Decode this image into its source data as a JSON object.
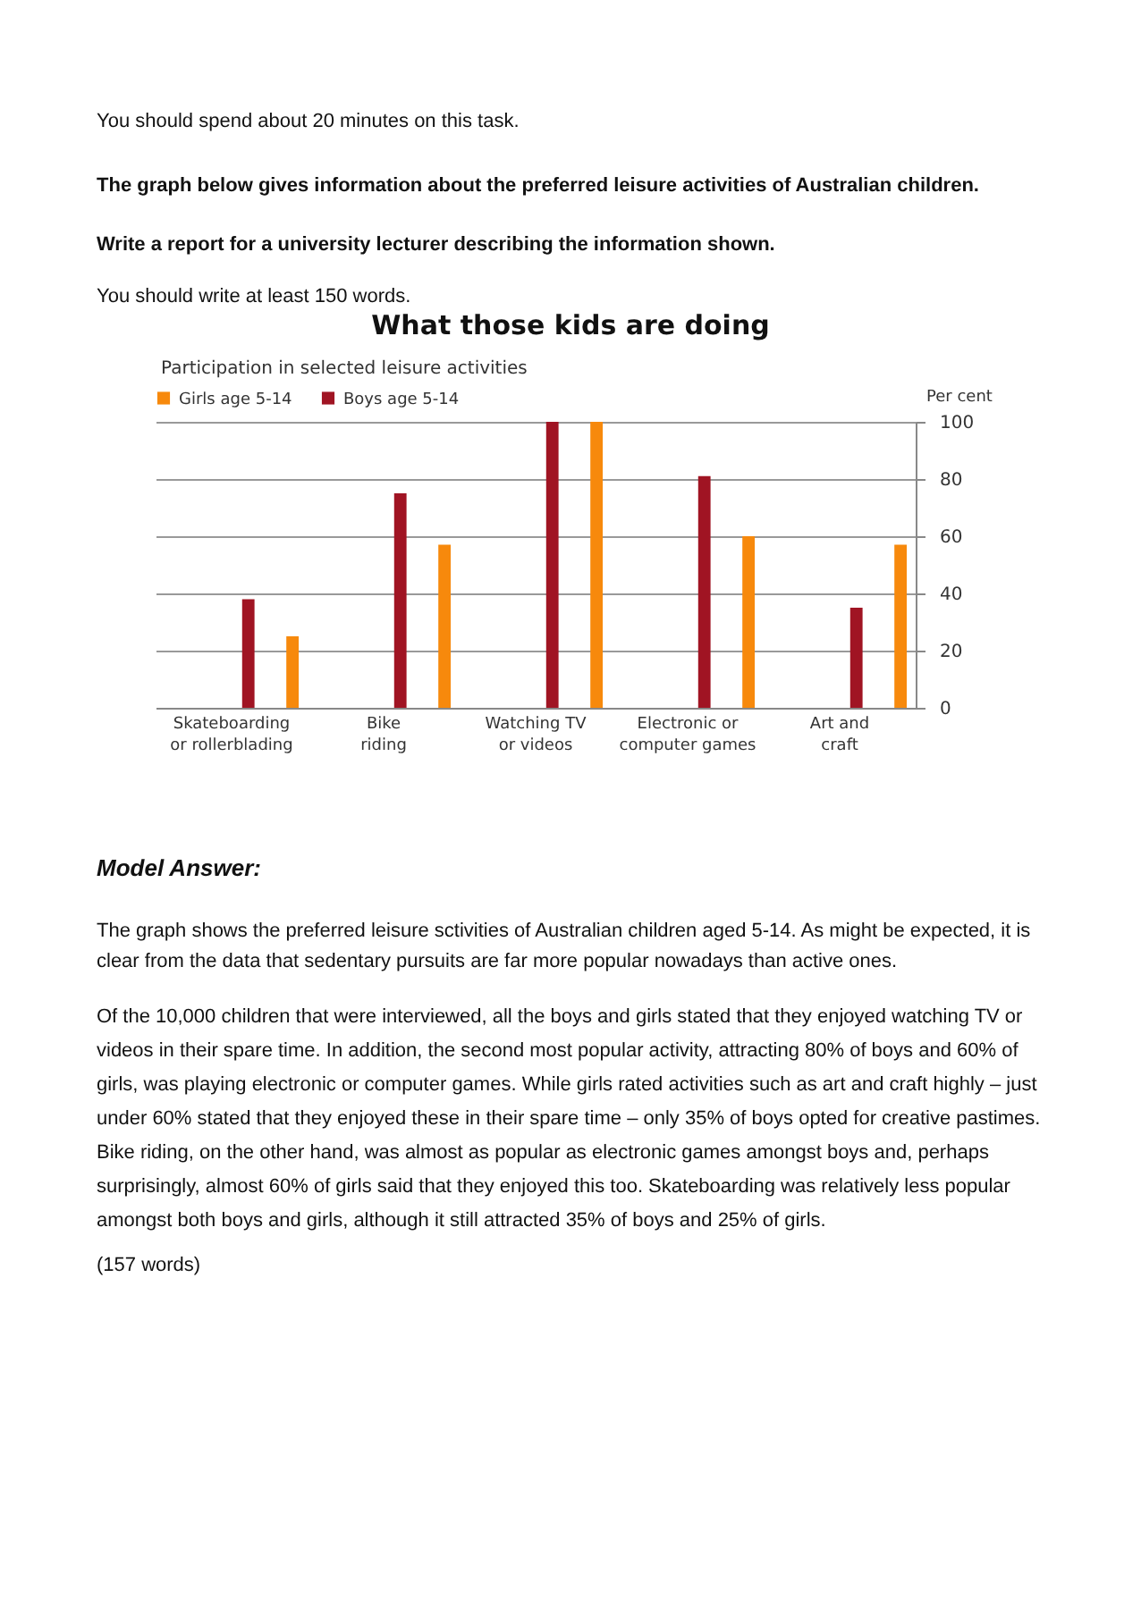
{
  "chart_data": {
    "type": "bar",
    "title": "What those kids are doing",
    "subtitle": "Participation in selected leisure activities",
    "ylabel": "Per cent",
    "annotations": [
      "You should spend about 20 minutes on this task.",
      "The graph below gives information about the preferred leisure activities of Australian children.",
      "Write a report for a university lecturer describing the information shown.",
      "You should write at least 150 words.",
      "Model Answer:",
      "The graph shows the preferred leisure sctivities of Australian children aged 5-14. As might be expected, it is clear from the data that sedentary pursuits are far more popular nowadays than active ones.",
      "Of the 10,000 children that were interviewed, all the boys and girls stated that they enjoyed watching TV or videos in their spare time. In addition, the second most popular activity, attracting 80% of boys and 60% of girls, was playing electronic or computer games. While girls rated activities such as art and craft highly – just under 60% stated that they enjoyed these in their spare time – only 35% of boys opted for creative pastimes. Bike riding, on the other hand, was almost as popular as electronic games amongst boys and, perhaps surprisingly, almost 60% of girls said that they enjoyed this too. Skateboarding was relatively less popular amongst both boys and girls, although it still attracted 35% of boys and 25% of girls.",
      "(157 words)"
    ],
    "categories": [
      "Skateboarding or rollerblading",
      "Bike riding",
      "Watching TV or videos",
      "Electronic or computer games",
      "Art and craft"
    ],
    "series": [
      {
        "name": "Girls age  5-14",
        "color": "#f7890c",
        "values": [
          25,
          57,
          100,
          60,
          57
        ]
      },
      {
        "name": "Boys age 5-14",
        "color": "#a01423",
        "values": [
          38,
          75,
          100,
          81,
          35
        ]
      }
    ],
    "ylim": [
      0,
      100
    ],
    "yticks": [
      0,
      20,
      40,
      60,
      80,
      100
    ],
    "grid": "y",
    "legend": "top left"
  }
}
